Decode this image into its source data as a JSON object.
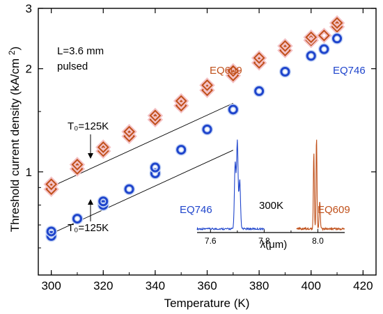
{
  "chart_data": {
    "type": "scatter",
    "title": "",
    "xlabel": "Temperature (K)",
    "ylabel": "Threshold current density (kA/cm²)",
    "xlim": [
      295,
      425
    ],
    "ylim": [
      0.5,
      3
    ],
    "yscale": "log",
    "x_ticks": [
      300,
      320,
      340,
      360,
      380,
      400,
      420
    ],
    "y_ticks": [
      1,
      2,
      3
    ],
    "grid": false,
    "series": [
      {
        "name": "EQ609",
        "marker": "diamond",
        "color": "#c0501a",
        "halo": "#f4c1c5",
        "points": [
          [
            300,
            0.89
          ],
          [
            300,
            0.92
          ],
          [
            310,
            1.02
          ],
          [
            310,
            1.05
          ],
          [
            320,
            1.15
          ],
          [
            320,
            1.18
          ],
          [
            330,
            1.27
          ],
          [
            330,
            1.31
          ],
          [
            340,
            1.42
          ],
          [
            340,
            1.46
          ],
          [
            350,
            1.56
          ],
          [
            350,
            1.61
          ],
          [
            360,
            1.73
          ],
          [
            360,
            1.79
          ],
          [
            370,
            1.91
          ],
          [
            370,
            1.97
          ],
          [
            380,
            2.08
          ],
          [
            380,
            2.15
          ],
          [
            390,
            2.26
          ],
          [
            390,
            2.33
          ],
          [
            400,
            2.42
          ],
          [
            400,
            2.47
          ],
          [
            405,
            2.5
          ],
          [
            410,
            2.65
          ],
          [
            410,
            2.72
          ]
        ]
      },
      {
        "name": "EQ746",
        "marker": "circle",
        "color": "#1f45cc",
        "halo": "#c7d6f5",
        "points": [
          [
            300,
            0.65
          ],
          [
            300,
            0.67
          ],
          [
            310,
            0.73
          ],
          [
            320,
            0.8
          ],
          [
            320,
            0.82
          ],
          [
            330,
            0.89
          ],
          [
            340,
            0.99
          ],
          [
            340,
            1.03
          ],
          [
            350,
            1.16
          ],
          [
            360,
            1.33
          ],
          [
            370,
            1.52
          ],
          [
            380,
            1.72
          ],
          [
            390,
            1.96
          ],
          [
            400,
            2.18
          ],
          [
            405,
            2.28
          ],
          [
            410,
            2.45
          ]
        ]
      }
    ],
    "fit_lines": [
      {
        "label": "T₀=125K",
        "x": [
          300,
          370
        ],
        "y": [
          0.905,
          1.586
        ]
      },
      {
        "label": "T₀=125K",
        "x": [
          300,
          370
        ],
        "y": [
          0.66,
          1.157
        ]
      }
    ],
    "annotations": {
      "device": "L=3.6 mm",
      "mode": "pulsed",
      "series_label_eq609": "EQ609",
      "series_label_eq746": "EQ746",
      "t0_upper": "T₀=125K",
      "t0_lower": "T₀=125K"
    },
    "inset": {
      "type": "line",
      "xlabel": "λ(μm)",
      "xlim": [
        7.55,
        8.1
      ],
      "x_ticks": [
        7.6,
        7.8,
        8.0
      ],
      "temperature_label": "300K",
      "series": [
        {
          "name": "EQ746",
          "color": "#1f45cc",
          "range": [
            7.55,
            7.8
          ],
          "peak": 7.7
        },
        {
          "name": "EQ609",
          "color": "#c0501a",
          "range": [
            7.92,
            8.1
          ],
          "peak": 7.995
        }
      ]
    }
  }
}
